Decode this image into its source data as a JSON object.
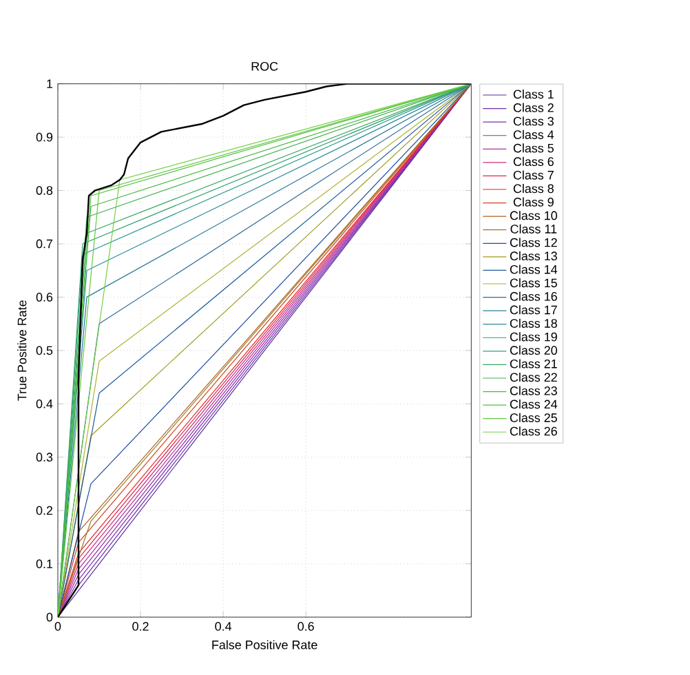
{
  "chart_data": {
    "type": "line",
    "title": "ROC",
    "xlabel": "False Positive Rate",
    "ylabel": "True Positive Rate",
    "xlim": [
      0,
      1
    ],
    "ylim": [
      0,
      1
    ],
    "xticks": [
      0,
      0.2,
      0.4,
      0.6
    ],
    "yticks": [
      0,
      0.1,
      0.2,
      0.3,
      0.4,
      0.5,
      0.6,
      0.7,
      0.8,
      0.9,
      1
    ],
    "grid": true,
    "legend": "right",
    "line_style": "solid",
    "marker": "none",
    "series": [
      {
        "name": "Class 1",
        "color": "#5b2c9f",
        "x": [
          0,
          0.05,
          1
        ],
        "values": [
          0,
          0.05,
          1
        ]
      },
      {
        "name": "Class 2",
        "color": "#6a2ca8",
        "x": [
          0,
          0.05,
          1
        ],
        "values": [
          0,
          0.06,
          1
        ]
      },
      {
        "name": "Class 3",
        "color": "#7e2cae",
        "x": [
          0,
          0.05,
          1
        ],
        "values": [
          0,
          0.07,
          1
        ]
      },
      {
        "name": "Class 4",
        "color": "#952ca8",
        "x": [
          0,
          0.05,
          1
        ],
        "values": [
          0,
          0.08,
          1
        ]
      },
      {
        "name": "Class 5",
        "color": "#b02c9c",
        "x": [
          0,
          0.05,
          1
        ],
        "values": [
          0,
          0.09,
          1
        ]
      },
      {
        "name": "Class 6",
        "color": "#c82c7c",
        "x": [
          0,
          0.05,
          1
        ],
        "values": [
          0,
          0.1,
          1
        ]
      },
      {
        "name": "Class 7",
        "color": "#e0204c",
        "x": [
          0,
          0.05,
          1
        ],
        "values": [
          0,
          0.11,
          1
        ]
      },
      {
        "name": "Class 8",
        "color": "#e82020",
        "x": [
          0,
          0.05,
          1
        ],
        "values": [
          0,
          0.12,
          1
        ]
      },
      {
        "name": "Class 9",
        "color": "#d04020",
        "x": [
          0,
          0.05,
          1
        ],
        "values": [
          0,
          0.14,
          1
        ]
      },
      {
        "name": "Class 10",
        "color": "#b06020",
        "x": [
          0,
          0.05,
          1
        ],
        "values": [
          0,
          0.16,
          1
        ]
      },
      {
        "name": "Class 11",
        "color": "#9a7a20",
        "x": [
          0,
          0.08,
          1
        ],
        "values": [
          0,
          0.18,
          1
        ]
      },
      {
        "name": "Class 12",
        "color": "#1c4aa0",
        "x": [
          0,
          0.08,
          1
        ],
        "values": [
          0,
          0.25,
          1
        ]
      },
      {
        "name": "Class 13",
        "color": "#a09a20",
        "x": [
          0,
          0.08,
          1
        ],
        "values": [
          0,
          0.34,
          1
        ]
      },
      {
        "name": "Class 14",
        "color": "#1c5a9c",
        "x": [
          0,
          0.1,
          1
        ],
        "values": [
          0,
          0.42,
          1
        ]
      },
      {
        "name": "Class 15",
        "color": "#b0b030",
        "x": [
          0,
          0.1,
          1
        ],
        "values": [
          0,
          0.48,
          1
        ]
      },
      {
        "name": "Class 16",
        "color": "#2a6a9a",
        "x": [
          0,
          0.1,
          1
        ],
        "values": [
          0,
          0.55,
          1
        ]
      },
      {
        "name": "Class 17",
        "color": "#2a7a9a",
        "x": [
          0,
          0.07,
          1
        ],
        "values": [
          0,
          0.6,
          1
        ]
      },
      {
        "name": "Class 18",
        "color": "#2a8a9a",
        "x": [
          0,
          0.07,
          1
        ],
        "values": [
          0,
          0.65,
          1
        ]
      },
      {
        "name": "Class 19",
        "color": "#2a9a8a",
        "x": [
          0,
          0.06,
          1
        ],
        "values": [
          0,
          0.68,
          1
        ]
      },
      {
        "name": "Class 20",
        "color": "#30a070",
        "x": [
          0,
          0.06,
          1
        ],
        "values": [
          0,
          0.7,
          1
        ]
      },
      {
        "name": "Class 21",
        "color": "#38a860",
        "x": [
          0,
          0.07,
          1
        ],
        "values": [
          0,
          0.72,
          1
        ]
      },
      {
        "name": "Class 22",
        "color": "#40b050",
        "x": [
          0,
          0.07,
          1
        ],
        "values": [
          0,
          0.75,
          1
        ]
      },
      {
        "name": "Class 23",
        "color": "#48b840",
        "x": [
          0,
          0.08,
          1
        ],
        "values": [
          0,
          0.77,
          1
        ]
      },
      {
        "name": "Class 24",
        "color": "#50c040",
        "x": [
          0,
          0.08,
          1
        ],
        "values": [
          0,
          0.79,
          1
        ]
      },
      {
        "name": "Class 25",
        "color": "#60c840",
        "x": [
          0,
          0.1,
          1
        ],
        "values": [
          0,
          0.8,
          1
        ]
      },
      {
        "name": "Class 26",
        "color": "#70d040",
        "x": [
          0,
          0.15,
          1
        ],
        "values": [
          0,
          0.82,
          1
        ]
      },
      {
        "color": "#000000",
        "x": [
          0,
          0.05,
          0.05,
          0.06,
          0.07,
          0.075,
          0.09,
          0.13,
          0.15,
          0.16,
          0.17,
          0.2,
          0.25,
          0.35,
          0.4,
          0.45,
          0.5,
          0.6,
          0.65,
          0.7,
          1
        ],
        "values": [
          0,
          0.06,
          0.45,
          0.67,
          0.72,
          0.79,
          0.8,
          0.81,
          0.82,
          0.83,
          0.86,
          0.89,
          0.91,
          0.925,
          0.94,
          0.96,
          0.97,
          0.985,
          0.995,
          1,
          1
        ]
      }
    ]
  }
}
